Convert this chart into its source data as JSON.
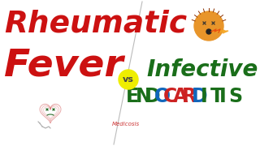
{
  "background_color": "#ffffff",
  "title_line1": "Rheumatic",
  "title_line2": "Fever",
  "vs_text": "vs",
  "right_line1": "Infective",
  "right_line2_letters": [
    "E",
    "N",
    "D",
    "O",
    "C",
    "A",
    "R",
    "D",
    "I",
    "T",
    "I",
    "S"
  ],
  "right_line2_colors": [
    "#1a6e1a",
    "#1a6e1a",
    "#1a6e1a",
    "#1166bb",
    "#cc2222",
    "#cc2222",
    "#cc2222",
    "#1166bb",
    "#1a6e1a",
    "#1a6e1a",
    "#1a6e1a",
    "#1a6e1a"
  ],
  "watermark": "Medicosis",
  "title_color": "#cc1111",
  "right_line1_color": "#1a6e1a",
  "vs_bg_color": "#eeee00",
  "vs_text_color": "#444444",
  "divider_color": "#bbbbbb",
  "watermark_color": "#cc3333",
  "fig_width": 3.2,
  "fig_height": 1.8,
  "dpi": 100
}
